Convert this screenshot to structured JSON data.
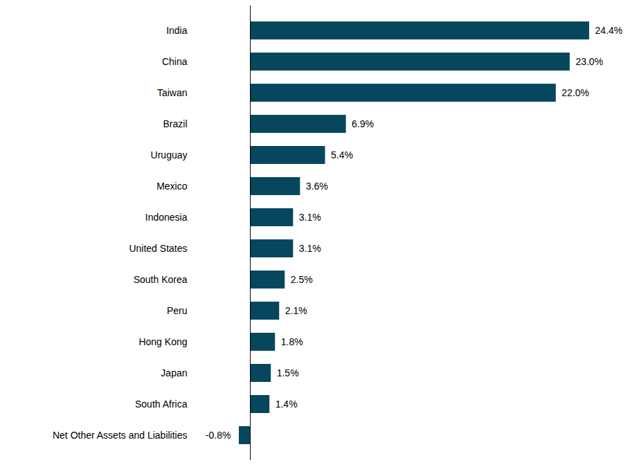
{
  "chart_data": {
    "type": "bar",
    "orientation": "horizontal",
    "categories": [
      "India",
      "China",
      "Taiwan",
      "Brazil",
      "Uruguay",
      "Mexico",
      "Indonesia",
      "United States",
      "South Korea",
      "Peru",
      "Hong Kong",
      "Japan",
      "South Africa",
      "Net Other Assets and Liabilities"
    ],
    "values": [
      24.4,
      23.0,
      22.0,
      6.9,
      5.4,
      3.6,
      3.1,
      3.1,
      2.5,
      2.1,
      1.8,
      1.5,
      1.4,
      -0.8
    ],
    "value_labels": [
      "24.4%",
      "23.0%",
      "22.0%",
      "6.9%",
      "5.4%",
      "3.6%",
      "3.1%",
      "3.1%",
      "2.5%",
      "2.1%",
      "1.8%",
      "1.5%",
      "1.4%",
      "-0.8%"
    ],
    "color": "#06475e",
    "xlim": [
      -0.8,
      24.4
    ],
    "xticks": [
      0
    ],
    "data_labels": true,
    "tick_labels": "y",
    "grid": false
  }
}
